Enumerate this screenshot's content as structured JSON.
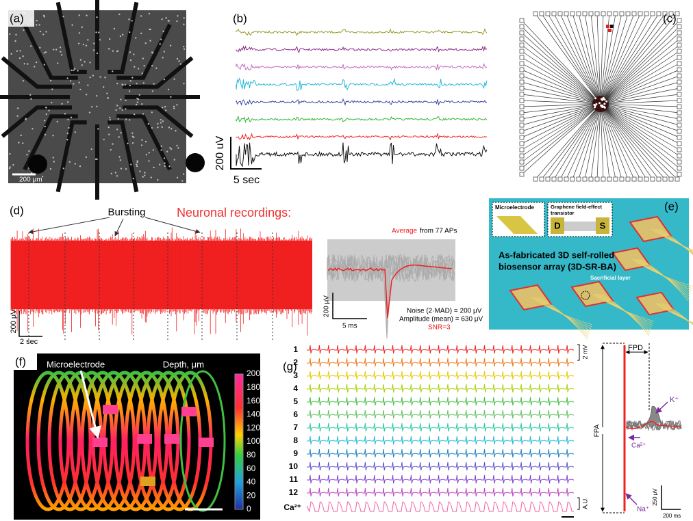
{
  "panels": {
    "a": {
      "label": "(a)",
      "scale": "200 μm"
    },
    "b": {
      "label": "(b)",
      "scale_v": "200 uV",
      "scale_h": "5 sec"
    },
    "c": {
      "label": "(c)"
    },
    "d": {
      "label": "(d)",
      "bursting": "Bursting",
      "title": "Neuronal recordings:",
      "scale_v": "200 μV",
      "scale_h": "2 sec",
      "inset": {
        "average": "Average",
        "from": "from 77 APs",
        "scale_v": "200 μV",
        "scale_h": "5 ms",
        "noise": "Noise (2·MAD) = 200 μV",
        "amplitude": "Amplitude (mean) = 630 μV",
        "snr": "SNR=3"
      }
    },
    "e": {
      "label": "(e)",
      "microelectrode": "Microelectrode",
      "gfet": [
        "Graphene field-effect",
        "transistor"
      ],
      "d": "D",
      "s": "S",
      "title": [
        "As-fabricated 3D self-rolled",
        "biosensor array (3D-SR-BA)"
      ],
      "sacrificial": "Sacrificial layer"
    },
    "f": {
      "label": "(f)",
      "microelectrode": "Microelectrode",
      "colorbar_title": "Depth, μm",
      "colorbar_ticks": [
        200,
        180,
        160,
        140,
        120,
        100,
        80,
        60,
        40,
        20,
        0
      ]
    },
    "g": {
      "label": "(g)",
      "channels": [
        "1",
        "2",
        "3",
        "4",
        "5",
        "6",
        "7",
        "8",
        "9",
        "10",
        "11",
        "12",
        "Ca²⁺"
      ],
      "scale_mv": "2 mV",
      "scale_au": "A.U.",
      "fpd": "FPD",
      "fpa": "FPA",
      "k": "K⁺",
      "ca": "Ca²⁺",
      "na": "Na⁺",
      "scale_v": "250 μV",
      "scale_h": "200 ms"
    }
  }
}
